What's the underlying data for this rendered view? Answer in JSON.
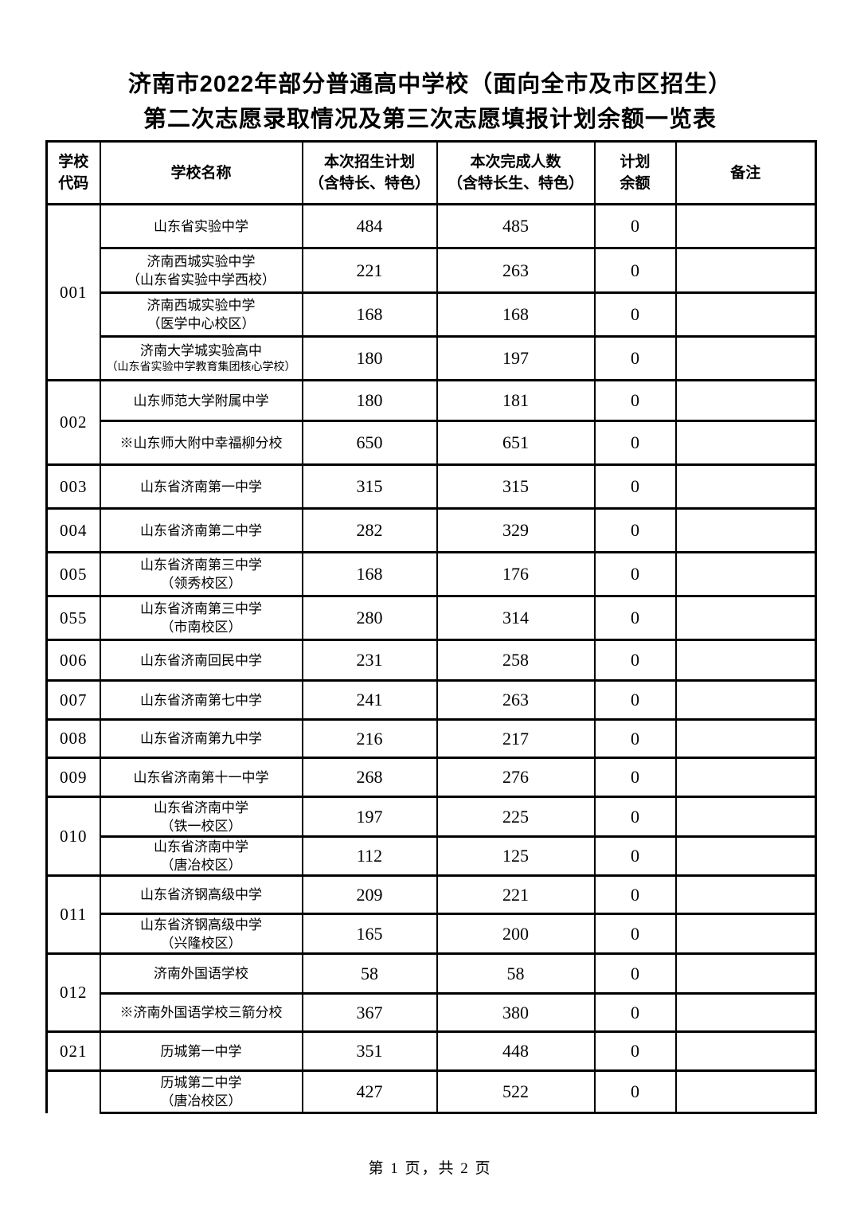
{
  "page": {
    "title_line1": "济南市2022年部分普通高中学校（面向全市及市区招生）",
    "title_line2": "第二次志愿录取情况及第三次志愿填报计划余额一览表",
    "footer": "第 1 页，共 2 页"
  },
  "table": {
    "headers": {
      "code": "学校\n代码",
      "name": "学校名称",
      "plan": "本次招生计划\n（含特长、特色）",
      "done": "本次完成人数\n（含特长生、特色）",
      "remain": "计划\n余额",
      "note": "备注"
    },
    "groups": [
      {
        "code": "001",
        "schools": [
          {
            "name": [
              "山东省实验中学"
            ],
            "plan": "484",
            "done": "485",
            "remain": "0",
            "note": ""
          },
          {
            "name": [
              "济南西城实验中学",
              "（山东省实验中学西校）"
            ],
            "plan": "221",
            "done": "263",
            "remain": "0",
            "note": ""
          },
          {
            "name": [
              "济南西城实验中学",
              "（医学中心校区）"
            ],
            "plan": "168",
            "done": "168",
            "remain": "0",
            "note": ""
          },
          {
            "name": [
              "济南大学城实验高中",
              "（山东省实验中学教育集团核心学校）"
            ],
            "plan": "180",
            "done": "197",
            "remain": "0",
            "note": ""
          }
        ]
      },
      {
        "code": "002",
        "schools": [
          {
            "name": [
              "山东师范大学附属中学"
            ],
            "plan": "180",
            "done": "181",
            "remain": "0",
            "note": ""
          },
          {
            "name": [
              "※山东师大附中幸福柳分校"
            ],
            "plan": "650",
            "done": "651",
            "remain": "0",
            "note": ""
          }
        ]
      },
      {
        "code": "003",
        "schools": [
          {
            "name": [
              "山东省济南第一中学"
            ],
            "plan": "315",
            "done": "315",
            "remain": "0",
            "note": ""
          }
        ]
      },
      {
        "code": "004",
        "schools": [
          {
            "name": [
              "山东省济南第二中学"
            ],
            "plan": "282",
            "done": "329",
            "remain": "0",
            "note": ""
          }
        ]
      },
      {
        "code": "005",
        "schools": [
          {
            "name": [
              "山东省济南第三中学",
              "（领秀校区）"
            ],
            "plan": "168",
            "done": "176",
            "remain": "0",
            "note": ""
          }
        ]
      },
      {
        "code": "055",
        "schools": [
          {
            "name": [
              "山东省济南第三中学",
              "（市南校区）"
            ],
            "plan": "280",
            "done": "314",
            "remain": "0",
            "note": ""
          }
        ]
      },
      {
        "code": "006",
        "schools": [
          {
            "name": [
              "山东省济南回民中学"
            ],
            "plan": "231",
            "done": "258",
            "remain": "0",
            "note": ""
          }
        ]
      },
      {
        "code": "007",
        "schools": [
          {
            "name": [
              "山东省济南第七中学"
            ],
            "plan": "241",
            "done": "263",
            "remain": "0",
            "note": ""
          }
        ]
      },
      {
        "code": "008",
        "schools": [
          {
            "name": [
              "山东省济南第九中学"
            ],
            "plan": "216",
            "done": "217",
            "remain": "0",
            "note": ""
          }
        ]
      },
      {
        "code": "009",
        "schools": [
          {
            "name": [
              "山东省济南第十一中学"
            ],
            "plan": "268",
            "done": "276",
            "remain": "0",
            "note": ""
          }
        ]
      },
      {
        "code": "010",
        "schools": [
          {
            "name": [
              "山东省济南中学",
              "（铁一校区）"
            ],
            "plan": "197",
            "done": "225",
            "remain": "0",
            "note": ""
          },
          {
            "name": [
              "山东省济南中学",
              "（唐冶校区）"
            ],
            "plan": "112",
            "done": "125",
            "remain": "0",
            "note": ""
          }
        ]
      },
      {
        "code": "011",
        "schools": [
          {
            "name": [
              "山东省济钢高级中学"
            ],
            "plan": "209",
            "done": "221",
            "remain": "0",
            "note": ""
          },
          {
            "name": [
              "山东省济钢高级中学",
              "（兴隆校区）"
            ],
            "plan": "165",
            "done": "200",
            "remain": "0",
            "note": ""
          }
        ]
      },
      {
        "code": "012",
        "schools": [
          {
            "name": [
              "济南外国语学校"
            ],
            "plan": "58",
            "done": "58",
            "remain": "0",
            "note": ""
          },
          {
            "name": [
              "※济南外国语学校三箭分校"
            ],
            "plan": "367",
            "done": "380",
            "remain": "0",
            "note": ""
          }
        ]
      },
      {
        "code": "021",
        "schools": [
          {
            "name": [
              "历城第一中学"
            ],
            "plan": "351",
            "done": "448",
            "remain": "0",
            "note": ""
          }
        ]
      },
      {
        "code": "",
        "code_continues": true,
        "schools": [
          {
            "name": [
              "历城第二中学",
              "（唐冶校区）"
            ],
            "plan": "427",
            "done": "522",
            "remain": "0",
            "note": ""
          }
        ]
      }
    ]
  }
}
